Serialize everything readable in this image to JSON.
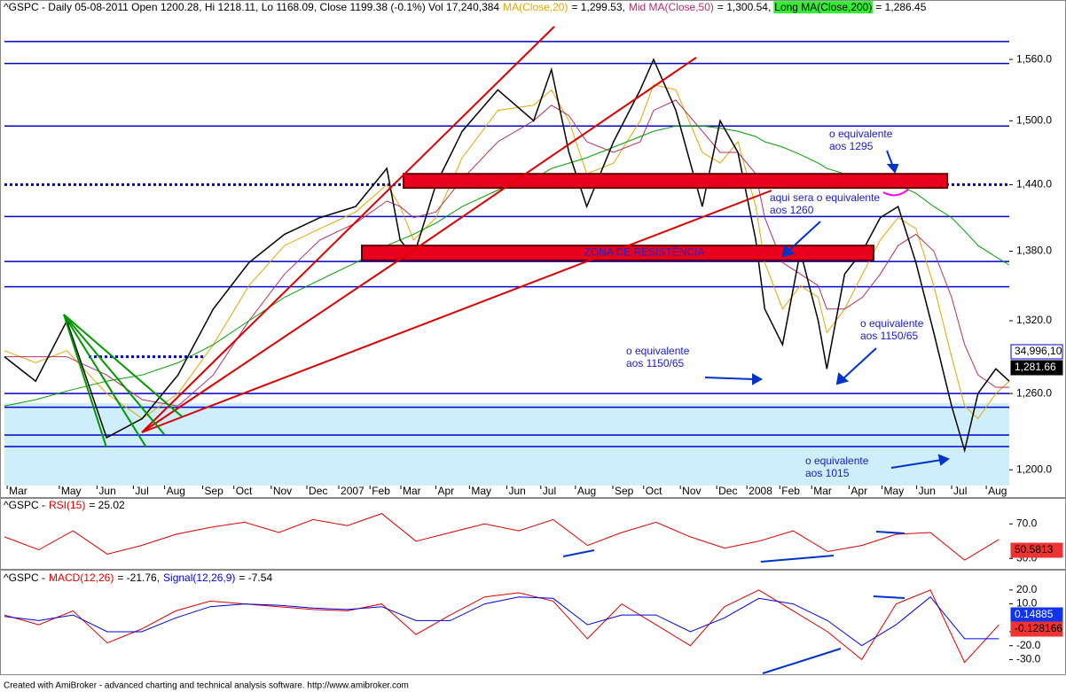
{
  "chart_data": [
    {
      "type": "line",
      "log": true,
      "header": "^GSPC - Daily 05-08-2011 Open 1200.28, Hi 1218.11, Lo 1168.09, Close 1199.38 (-0.1%) Vol 17,240,384",
      "xlim": [
        0,
        29.3
      ],
      "ylim": [
        1188,
        1604
      ],
      "xticks": [
        {
          "value": 0.08,
          "label": "Mar"
        },
        {
          "value": 1.6,
          "label": "May"
        },
        {
          "value": 2.7,
          "label": "Jun"
        },
        {
          "value": 3.76,
          "label": "Jul"
        },
        {
          "value": 4.67,
          "label": "Aug"
        },
        {
          "value": 5.78,
          "label": "Sep"
        },
        {
          "value": 6.69,
          "label": "Oct"
        },
        {
          "value": 7.78,
          "label": "Nov"
        },
        {
          "value": 8.82,
          "label": "Dec"
        },
        {
          "value": 9.75,
          "label": "2007"
        },
        {
          "value": 10.66,
          "label": "Feb"
        },
        {
          "value": 11.56,
          "label": "Mar"
        },
        {
          "value": 12.58,
          "label": "Apr"
        },
        {
          "value": 13.56,
          "label": "May"
        },
        {
          "value": 14.65,
          "label": "Jun"
        },
        {
          "value": 15.64,
          "label": "Jul"
        },
        {
          "value": 16.65,
          "label": "Aug"
        },
        {
          "value": 17.74,
          "label": "Sep"
        },
        {
          "value": 18.64,
          "label": "Oct"
        },
        {
          "value": 19.71,
          "label": "Nov"
        },
        {
          "value": 20.77,
          "label": "Dec"
        },
        {
          "value": 21.65,
          "label": "2008"
        },
        {
          "value": 22.61,
          "label": "Feb"
        },
        {
          "value": 23.54,
          "label": "Mar"
        },
        {
          "value": 24.63,
          "label": "Apr"
        },
        {
          "value": 25.59,
          "label": "May"
        },
        {
          "value": 26.6,
          "label": "Jun"
        },
        {
          "value": 27.62,
          "label": "Jul"
        },
        {
          "value": 28.63,
          "label": "Aug"
        }
      ],
      "yticks": [
        {
          "value": 1200,
          "label": "1,200.0"
        },
        {
          "value": 1260,
          "label": "1,260.0"
        },
        {
          "value": 1320,
          "label": "1,320.0"
        },
        {
          "value": 1380,
          "label": "1,380.0"
        },
        {
          "value": 1440,
          "label": "1,440.0"
        },
        {
          "value": 1500,
          "label": "1,500.0"
        },
        {
          "value": 1560,
          "label": "1,560.0"
        }
      ],
      "x": [
        0,
        0.91,
        1.82,
        2.98,
        4.02,
        5.06,
        6.09,
        7.13,
        8.17,
        9.2,
        10.24,
        11.15,
        11.54,
        11.93,
        12.58,
        13.35,
        14.39,
        15.43,
        15.95,
        16.46,
        16.98,
        17.76,
        18.54,
        18.93,
        19.58,
        20.35,
        20.87,
        21.39,
        21.91,
        22.17,
        22.69,
        23.21,
        23.73,
        23.98,
        24.5,
        25.02,
        25.54,
        26.06,
        26.58,
        27.1,
        27.62,
        28.0,
        28.39,
        28.91,
        29.3
      ],
      "series": [
        {
          "color": "#e0a800",
          "name": "MA(Close,20)",
          "header_value": "= 1,299.53,",
          "values": [
            1295,
            1285,
            1295,
            1260,
            1240,
            1260,
            1300,
            1350,
            1385,
            1400,
            1415,
            1440,
            1420,
            1390,
            1410,
            1465,
            1510,
            1515,
            1530,
            1500,
            1450,
            1460,
            1500,
            1535,
            1530,
            1470,
            1460,
            1480,
            1420,
            1370,
            1330,
            1350,
            1340,
            1310,
            1330,
            1360,
            1390,
            1410,
            1400,
            1350,
            1290,
            1250,
            1240,
            1260,
            1270
          ]
        },
        {
          "color": "#b0306a",
          "name": "Mid MA(Close,50)",
          "header_value": "= 1,300.54,",
          "values": [
            1290,
            1290,
            1290,
            1275,
            1255,
            1250,
            1275,
            1320,
            1360,
            1390,
            1405,
            1425,
            1420,
            1410,
            1415,
            1445,
            1480,
            1500,
            1515,
            1505,
            1480,
            1470,
            1480,
            1510,
            1520,
            1490,
            1470,
            1470,
            1450,
            1410,
            1370,
            1360,
            1350,
            1330,
            1330,
            1340,
            1360,
            1385,
            1395,
            1380,
            1340,
            1300,
            1275,
            1265,
            1265
          ]
        },
        {
          "color": "#00a000",
          "name": "Long MA(Close,200)",
          "header_value": "= 1,286.45",
          "label_background": "#33ee33",
          "values": [
            1250,
            1255,
            1262,
            1270,
            1275,
            1285,
            1300,
            1320,
            1340,
            1355,
            1370,
            1385,
            1390,
            1395,
            1405,
            1420,
            1435,
            1445,
            1455,
            1460,
            1465,
            1475,
            1485,
            1490,
            1495,
            1495,
            1493,
            1490,
            1485,
            1480,
            1475,
            1468,
            1460,
            1455,
            1450,
            1448,
            1445,
            1440,
            1432,
            1420,
            1410,
            1398,
            1385,
            1375,
            1368
          ]
        },
        {
          "color": "#000000",
          "values": [
            1290,
            1270,
            1320,
            1225,
            1240,
            1275,
            1330,
            1370,
            1395,
            1410,
            1420,
            1455,
            1390,
            1375,
            1440,
            1490,
            1530,
            1500,
            1550,
            1470,
            1420,
            1480,
            1530,
            1560,
            1510,
            1420,
            1500,
            1470,
            1390,
            1330,
            1300,
            1380,
            1320,
            1280,
            1360,
            1380,
            1410,
            1420,
            1370,
            1310,
            1250,
            1215,
            1260,
            1280,
            1270
          ]
        }
      ],
      "levels": [
        1578,
        1556,
        1495,
        1411,
        1371,
        1349,
        1260,
        1249,
        1227,
        1218
      ],
      "level_color": "#0000cc",
      "dotted_levels": [
        1440,
        1290
      ],
      "zones": [
        {
          "low": 1437,
          "high": 1450
        },
        {
          "low": 1372,
          "high": 1385,
          "label": "ZONA DE RESISTÊNCIA"
        }
      ],
      "zone_color": "#e8001c",
      "annotations": [
        [
          "o equivalente",
          "aos 1295"
        ],
        [
          "aqui sera o equivalente",
          "aos 1260"
        ],
        [
          "o equivalente",
          "aos 1150/65"
        ],
        [
          "o equivalente",
          "aos 1150/65"
        ],
        [
          "o equivalente",
          "aos 1015"
        ]
      ],
      "last_labels": [
        "34,996,10",
        "1,281.66"
      ]
    },
    {
      "type": "line",
      "header": "^GSPC -",
      "xlim": [
        0,
        29.3
      ],
      "ylim": [
        20,
        97
      ],
      "yticks": [
        {
          "value": 70,
          "label": "70.0"
        },
        {
          "value": 30,
          "label": "30.0"
        }
      ],
      "x": [
        0,
        1,
        2,
        3,
        4,
        5,
        6,
        7,
        8,
        9,
        10,
        11,
        12,
        13,
        14,
        15,
        16,
        17,
        18,
        19,
        20,
        21,
        22,
        23,
        24,
        25,
        26,
        27,
        28,
        29
      ],
      "series": [
        {
          "name": "RSI(15)",
          "header_value": "= 25.02",
          "color": "#dd0000",
          "values": [
            55,
            40,
            62,
            35,
            45,
            58,
            66,
            72,
            60,
            75,
            68,
            82,
            50,
            60,
            70,
            62,
            75,
            45,
            60,
            72,
            55,
            42,
            50,
            62,
            38,
            45,
            58,
            60,
            28,
            52
          ]
        }
      ],
      "last_labels": [
        "50.5813"
      ]
    },
    {
      "type": "line",
      "header": "^GSPC -",
      "xlim": [
        0,
        29.3
      ],
      "ylim": [
        -38,
        32
      ],
      "yticks": [
        {
          "value": 20,
          "label": "20.0"
        },
        {
          "value": 10,
          "label": "10.0"
        },
        {
          "value": -10,
          "label": "-10.0"
        },
        {
          "value": -20,
          "label": "-20.0"
        },
        {
          "value": -30,
          "label": "-30.0"
        }
      ],
      "x": [
        0,
        1,
        2,
        3,
        4,
        5,
        6,
        7,
        8,
        9,
        10,
        11,
        12,
        13,
        14,
        15,
        16,
        17,
        18,
        19,
        20,
        21,
        22,
        23,
        24,
        25,
        26,
        27,
        28,
        29
      ],
      "series": [
        {
          "name": "MACD(12,26)",
          "header_value": "= -21.76,",
          "color": "#dd0000",
          "values": [
            2,
            -5,
            5,
            -18,
            -8,
            5,
            12,
            10,
            8,
            6,
            5,
            10,
            -12,
            2,
            15,
            18,
            12,
            -15,
            10,
            -5,
            -20,
            8,
            20,
            5,
            -10,
            -30,
            10,
            20,
            -32,
            -5
          ]
        },
        {
          "name": "Signal(12,26,9)",
          "header_value": "= -7.54",
          "color": "#0000dd",
          "values": [
            1,
            -2,
            2,
            -10,
            -10,
            0,
            8,
            10,
            9,
            7,
            6,
            8,
            -2,
            -2,
            10,
            15,
            14,
            -5,
            2,
            2,
            -10,
            0,
            14,
            10,
            -2,
            -20,
            -5,
            15,
            -15,
            -15
          ]
        }
      ],
      "last_labels": [
        "0.14885",
        "-0.128166"
      ]
    }
  ],
  "footer": "Created with AmiBroker - advanced charting and technical analysis software. http://www.amibroker.com"
}
